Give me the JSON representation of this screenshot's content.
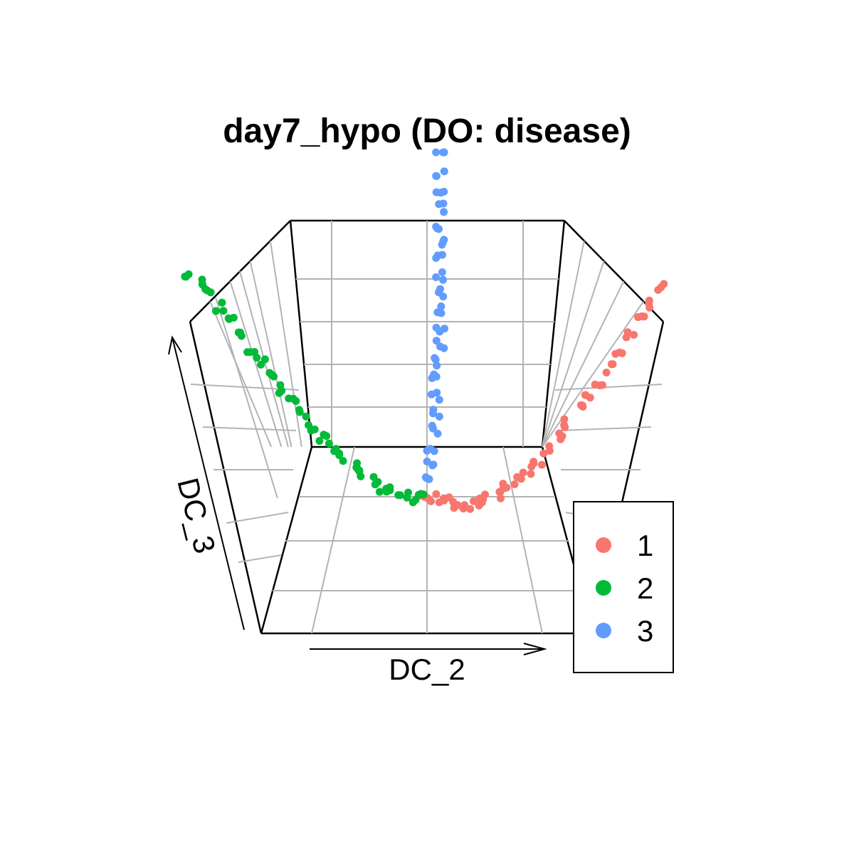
{
  "chart_data": {
    "type": "scatter",
    "projection": "3d",
    "title": "day7_hypo (DO: disease)",
    "xlabel": "DC_2",
    "ylabel": "DC_3",
    "grid": true,
    "legend_position": "bottom-right",
    "series": [
      {
        "name": "1",
        "color": "#F8766D",
        "description_shape": "right arm rising from vertex",
        "points": [
          [
            0.0,
            0.0
          ],
          [
            0.02,
            0.0
          ],
          [
            0.04,
            -0.01
          ],
          [
            0.06,
            -0.02
          ],
          [
            0.08,
            -0.02
          ],
          [
            0.1,
            -0.01
          ],
          [
            0.12,
            0.0
          ],
          [
            0.14,
            0.01
          ],
          [
            0.16,
            0.03
          ],
          [
            0.18,
            0.05
          ],
          [
            0.2,
            0.08
          ],
          [
            0.22,
            0.11
          ],
          [
            0.24,
            0.14
          ],
          [
            0.26,
            0.18
          ],
          [
            0.28,
            0.22
          ],
          [
            0.3,
            0.26
          ],
          [
            0.32,
            0.3
          ],
          [
            0.34,
            0.34
          ],
          [
            0.36,
            0.38
          ],
          [
            0.38,
            0.43
          ],
          [
            0.4,
            0.48
          ],
          [
            0.42,
            0.52
          ],
          [
            0.44,
            0.57
          ],
          [
            0.46,
            0.62
          ]
        ]
      },
      {
        "name": "2",
        "color": "#00BA38",
        "description_shape": "left arm rising from vertex",
        "points": [
          [
            0.0,
            0.0
          ],
          [
            -0.02,
            0.0
          ],
          [
            -0.04,
            0.01
          ],
          [
            -0.06,
            0.02
          ],
          [
            -0.08,
            0.03
          ],
          [
            -0.1,
            0.05
          ],
          [
            -0.12,
            0.07
          ],
          [
            -0.14,
            0.09
          ],
          [
            -0.16,
            0.12
          ],
          [
            -0.18,
            0.15
          ],
          [
            -0.2,
            0.18
          ],
          [
            -0.22,
            0.21
          ],
          [
            -0.24,
            0.25
          ],
          [
            -0.26,
            0.28
          ],
          [
            -0.28,
            0.32
          ],
          [
            -0.3,
            0.36
          ],
          [
            -0.32,
            0.4
          ],
          [
            -0.34,
            0.44
          ],
          [
            -0.36,
            0.48
          ],
          [
            -0.38,
            0.52
          ],
          [
            -0.4,
            0.56
          ],
          [
            -0.42,
            0.6
          ],
          [
            -0.44,
            0.63
          ],
          [
            -0.46,
            0.66
          ]
        ]
      },
      {
        "name": "3",
        "color": "#619CFF",
        "description_shape": "vertical column from vertex",
        "points": [
          [
            0.01,
            0.05
          ],
          [
            0.01,
            0.1
          ],
          [
            0.01,
            0.15
          ],
          [
            0.02,
            0.2
          ],
          [
            0.02,
            0.25
          ],
          [
            0.02,
            0.3
          ],
          [
            0.02,
            0.35
          ],
          [
            0.02,
            0.4
          ],
          [
            0.03,
            0.45
          ],
          [
            0.03,
            0.5
          ],
          [
            0.03,
            0.55
          ],
          [
            0.03,
            0.6
          ],
          [
            0.03,
            0.65
          ],
          [
            0.03,
            0.7
          ],
          [
            0.03,
            0.75
          ],
          [
            0.03,
            0.8
          ],
          [
            0.03,
            0.85
          ],
          [
            0.03,
            0.9
          ],
          [
            0.03,
            0.95
          ],
          [
            0.03,
            1.0
          ]
        ]
      }
    ],
    "legend": [
      {
        "label": "1",
        "color": "#F8766D"
      },
      {
        "label": "2",
        "color": "#00BA38"
      },
      {
        "label": "3",
        "color": "#619CFF"
      }
    ]
  }
}
